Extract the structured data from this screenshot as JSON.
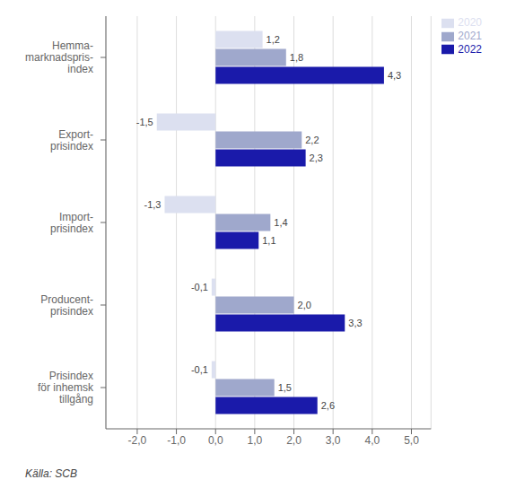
{
  "chart_data": {
    "type": "bar",
    "orientation": "horizontal",
    "categories": [
      "Hemma-\nmarknadspris-\nindex",
      "Export-\nprisindex",
      "Import-\nprisindex",
      "Producent-\nprisindex",
      "Prisindex\nför inhemsk\ntillgång"
    ],
    "series": [
      {
        "name": "2020",
        "color": "#dce0f0",
        "values": [
          1.2,
          -1.5,
          -1.3,
          -0.1,
          -0.1
        ],
        "value_labels": [
          "1,2",
          "-1,5",
          "-1,3",
          "-0,1",
          "-0,1"
        ]
      },
      {
        "name": "2021",
        "color": "#9fa8cc",
        "values": [
          1.8,
          2.2,
          1.4,
          2.0,
          1.5
        ],
        "value_labels": [
          "1,8",
          "2,2",
          "1,4",
          "2,0",
          "1,5"
        ]
      },
      {
        "name": "2022",
        "color": "#1a1aaa",
        "values": [
          4.3,
          2.3,
          1.1,
          3.3,
          2.6
        ],
        "value_labels": [
          "4,3",
          "2,3",
          "1,1",
          "3,3",
          "2,6"
        ]
      }
    ],
    "xlim": [
      -2.8,
      5.5
    ],
    "xticks": [
      {
        "value": -2.0,
        "label": "-2,0"
      },
      {
        "value": -1.0,
        "label": "-1,0"
      },
      {
        "value": 0.0,
        "label": "0,0"
      },
      {
        "value": 1.0,
        "label": "1,0"
      },
      {
        "value": 2.0,
        "label": "2,0"
      },
      {
        "value": 3.0,
        "label": "3,0"
      },
      {
        "value": 4.0,
        "label": "4,0"
      },
      {
        "value": 5.0,
        "label": "5,0"
      }
    ],
    "grid": true,
    "legend": "right",
    "data_labels": true,
    "annotations": [
      "Källa: SCB"
    ]
  }
}
